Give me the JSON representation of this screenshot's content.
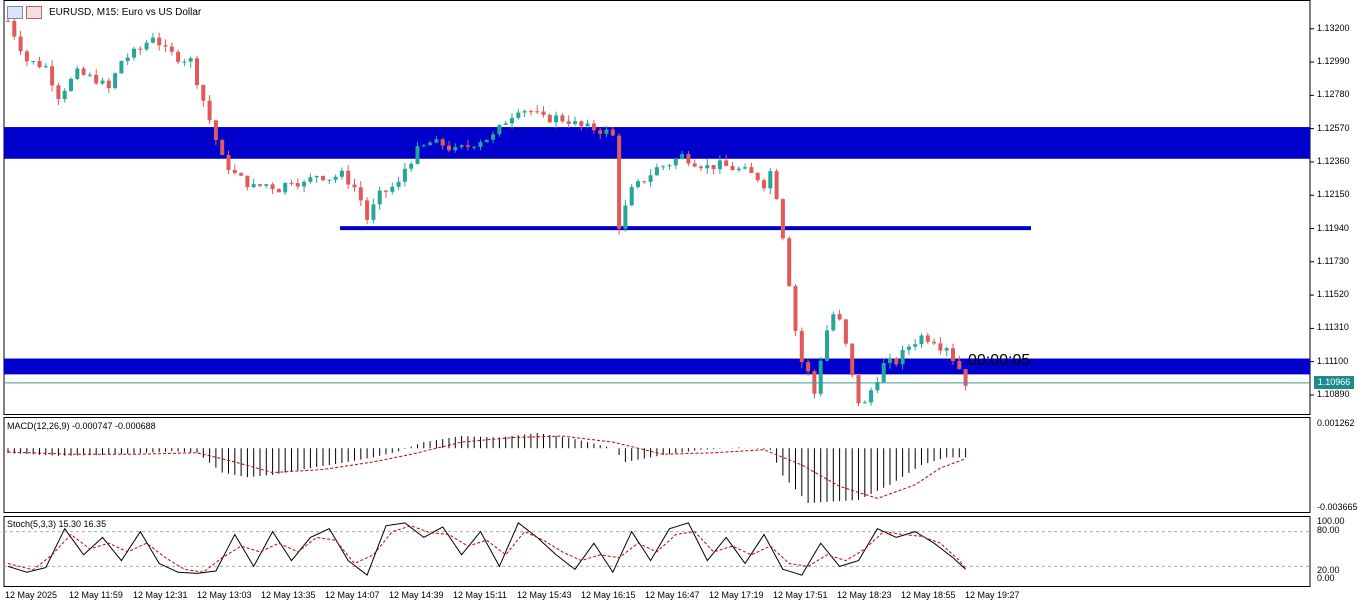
{
  "header": {
    "title": "EURUSD, M15:  Euro vs US Dollar",
    "icons": [
      "trade-menu-icon",
      "chart-type-icon"
    ]
  },
  "price_axis": {
    "ticks": [
      "1.13200",
      "1.12990",
      "1.12780",
      "1.12570",
      "1.12360",
      "1.12150",
      "1.11940",
      "1.11730",
      "1.11520",
      "1.11310",
      "1.11100",
      "1.10890"
    ],
    "range": [
      1.1077,
      1.1335
    ],
    "current_price": "1.10966",
    "countdown": "00:00:05"
  },
  "zones": [
    {
      "label": "supply-zone",
      "low": 1.1238,
      "high": 1.1258,
      "color": "#0000cc"
    },
    {
      "label": "support-line",
      "low": 1.11935,
      "high": 1.11955,
      "color": "#0000cc"
    },
    {
      "label": "demand-zone",
      "low": 1.1102,
      "high": 1.1112,
      "color": "#0000cc"
    }
  ],
  "macd": {
    "title": "MACD(12,26,9) -0.000747 -0.000688",
    "top_label": "0.001262",
    "bottom_label": "-0.003665",
    "range": [
      -0.003665,
      0.001262
    ]
  },
  "stoch": {
    "title": "Stoch(5,3,3) 15.30 16.35",
    "levels": [
      "100.00",
      "80.00",
      "20.00",
      "0.00"
    ]
  },
  "time_axis": {
    "labels": [
      "12 May 2025",
      "12 May 11:59",
      "12 May 12:31",
      "12 May 13:03",
      "12 May 13:35",
      "12 May 14:07",
      "12 May 14:39",
      "12 May 15:11",
      "12 May 15:43",
      "12 May 16:15",
      "12 May 16:47",
      "12 May 17:19",
      "12 May 17:51",
      "12 May 18:23",
      "12 May 18:55",
      "12 May 19:27"
    ]
  },
  "colors": {
    "bull": "#26a69a",
    "bear": "#e05a5a",
    "zone": "#0000cc",
    "signal": "#cc0000",
    "price_line": "#3a9a9a"
  },
  "chart_data": {
    "type": "candlestick",
    "symbol": "EURUSD",
    "timeframe": "M15",
    "path": [
      [
        0,
        1.1325
      ],
      [
        3,
        1.13
      ],
      [
        6,
        1.1296
      ],
      [
        8,
        1.1278
      ],
      [
        11,
        1.1292
      ],
      [
        14,
        1.1288
      ],
      [
        16,
        1.1282
      ],
      [
        18,
        1.13
      ],
      [
        21,
        1.1307
      ],
      [
        23,
        1.1316
      ],
      [
        25,
        1.1306
      ],
      [
        27,
        1.1302
      ],
      [
        29,
        1.13
      ],
      [
        31,
        1.1275
      ],
      [
        33,
        1.125
      ],
      [
        34,
        1.1238
      ],
      [
        36,
        1.1228
      ],
      [
        39,
        1.122
      ],
      [
        41,
        1.1222
      ],
      [
        43,
        1.1219
      ],
      [
        45,
        1.1225
      ],
      [
        47,
        1.1222
      ],
      [
        49,
        1.1228
      ],
      [
        51,
        1.1226
      ],
      [
        53,
        1.1228
      ],
      [
        55,
        1.122
      ],
      [
        56,
        1.1212
      ],
      [
        57,
        1.12
      ],
      [
        59,
        1.1215
      ],
      [
        61,
        1.122
      ],
      [
        62,
        1.1222
      ],
      [
        63,
        1.1232
      ],
      [
        65,
        1.1243
      ],
      [
        67,
        1.1248
      ],
      [
        69,
        1.1247
      ],
      [
        71,
        1.1243
      ],
      [
        73,
        1.1246
      ],
      [
        75,
        1.125
      ],
      [
        77,
        1.1252
      ],
      [
        79,
        1.1262
      ],
      [
        81,
        1.127
      ],
      [
        83,
        1.1268
      ],
      [
        85,
        1.1263
      ],
      [
        87,
        1.1264
      ],
      [
        89,
        1.1262
      ],
      [
        91,
        1.1258
      ],
      [
        93,
        1.1257
      ],
      [
        95,
        1.1255
      ],
      [
        96,
        1.1252
      ],
      [
        97,
        1.1196
      ],
      [
        99,
        1.1218
      ],
      [
        101,
        1.1225
      ],
      [
        103,
        1.1232
      ],
      [
        105,
        1.1235
      ],
      [
        107,
        1.124
      ],
      [
        109,
        1.1236
      ],
      [
        111,
        1.1233
      ],
      [
        113,
        1.1234
      ],
      [
        115,
        1.1232
      ],
      [
        117,
        1.123
      ],
      [
        119,
        1.1226
      ],
      [
        120,
        1.1222
      ],
      [
        121,
        1.123
      ],
      [
        122,
        1.1215
      ],
      [
        123,
        1.119
      ],
      [
        124,
        1.116
      ],
      [
        125,
        1.113
      ],
      [
        126,
        1.111
      ],
      [
        127,
        1.1103
      ],
      [
        128,
        1.109
      ],
      [
        129,
        1.1112
      ],
      [
        130,
        1.113
      ],
      [
        131,
        1.114
      ],
      [
        132,
        1.1135
      ],
      [
        133,
        1.112
      ],
      [
        134,
        1.11
      ],
      [
        135,
        1.1085
      ],
      [
        136,
        1.1083
      ],
      [
        137,
        1.1092
      ],
      [
        138,
        1.11
      ],
      [
        139,
        1.1108
      ],
      [
        141,
        1.111
      ],
      [
        143,
        1.112
      ],
      [
        145,
        1.1126
      ],
      [
        147,
        1.1124
      ],
      [
        148,
        1.112
      ],
      [
        149,
        1.112
      ],
      [
        150,
        1.1112
      ],
      [
        151,
        1.1106
      ],
      [
        152,
        1.1097
      ]
    ],
    "bars_total": 153,
    "macd_hist": [
      [
        0,
        -0.00032
      ],
      [
        8,
        -0.0005
      ],
      [
        14,
        -0.00045
      ],
      [
        20,
        -0.00035
      ],
      [
        26,
        -0.0002
      ],
      [
        30,
        -0.0003
      ],
      [
        34,
        -0.0016
      ],
      [
        38,
        -0.0019
      ],
      [
        42,
        -0.00175
      ],
      [
        48,
        -0.0013
      ],
      [
        54,
        -0.0009
      ],
      [
        58,
        -0.0006
      ],
      [
        62,
        -0.0002
      ],
      [
        66,
        0.0004
      ],
      [
        72,
        0.0008
      ],
      [
        78,
        0.0007
      ],
      [
        84,
        0.001
      ],
      [
        90,
        0.0006
      ],
      [
        96,
        0.0
      ],
      [
        98,
        -0.0009
      ],
      [
        104,
        -0.00045
      ],
      [
        110,
        -0.0001
      ],
      [
        116,
        5e-05
      ],
      [
        121,
        -0.0001
      ],
      [
        123,
        -0.0018
      ],
      [
        127,
        -0.0036
      ],
      [
        131,
        -0.0035
      ],
      [
        135,
        -0.0034
      ],
      [
        140,
        -0.0024
      ],
      [
        145,
        -0.0011
      ],
      [
        149,
        -0.0006
      ],
      [
        152,
        -0.0006
      ]
    ],
    "macd_signal": [
      [
        0,
        -0.00025
      ],
      [
        10,
        -0.0004
      ],
      [
        20,
        -0.0004
      ],
      [
        30,
        -0.0003
      ],
      [
        36,
        -0.0009
      ],
      [
        42,
        -0.0016
      ],
      [
        50,
        -0.0014
      ],
      [
        58,
        -0.0009
      ],
      [
        64,
        -0.0004
      ],
      [
        72,
        0.0004
      ],
      [
        80,
        0.0007
      ],
      [
        88,
        0.0008
      ],
      [
        96,
        0.0004
      ],
      [
        104,
        -0.0004
      ],
      [
        112,
        -0.0003
      ],
      [
        120,
        -0.0001
      ],
      [
        126,
        -0.0011
      ],
      [
        132,
        -0.0025
      ],
      [
        138,
        -0.0033
      ],
      [
        144,
        -0.0024
      ],
      [
        148,
        -0.0013
      ],
      [
        152,
        -0.00069
      ]
    ],
    "stoch_k": [
      [
        0,
        20
      ],
      [
        3,
        10
      ],
      [
        6,
        18
      ],
      [
        9,
        85
      ],
      [
        12,
        40
      ],
      [
        15,
        70
      ],
      [
        18,
        30
      ],
      [
        21,
        80
      ],
      [
        24,
        25
      ],
      [
        27,
        10
      ],
      [
        30,
        8
      ],
      [
        33,
        12
      ],
      [
        36,
        75
      ],
      [
        39,
        20
      ],
      [
        42,
        80
      ],
      [
        45,
        30
      ],
      [
        48,
        70
      ],
      [
        51,
        85
      ],
      [
        54,
        30
      ],
      [
        57,
        5
      ],
      [
        60,
        90
      ],
      [
        63,
        95
      ],
      [
        66,
        70
      ],
      [
        69,
        88
      ],
      [
        72,
        40
      ],
      [
        75,
        80
      ],
      [
        78,
        20
      ],
      [
        81,
        95
      ],
      [
        84,
        70
      ],
      [
        87,
        40
      ],
      [
        90,
        15
      ],
      [
        93,
        60
      ],
      [
        96,
        10
      ],
      [
        99,
        80
      ],
      [
        102,
        30
      ],
      [
        105,
        85
      ],
      [
        108,
        95
      ],
      [
        111,
        30
      ],
      [
        114,
        70
      ],
      [
        117,
        25
      ],
      [
        120,
        75
      ],
      [
        123,
        15
      ],
      [
        126,
        5
      ],
      [
        129,
        60
      ],
      [
        132,
        20
      ],
      [
        135,
        30
      ],
      [
        138,
        85
      ],
      [
        141,
        70
      ],
      [
        144,
        80
      ],
      [
        147,
        60
      ],
      [
        150,
        35
      ],
      [
        152,
        15
      ]
    ],
    "stoch_d": [
      [
        0,
        25
      ],
      [
        4,
        14
      ],
      [
        7,
        40
      ],
      [
        10,
        75
      ],
      [
        13,
        50
      ],
      [
        16,
        60
      ],
      [
        19,
        45
      ],
      [
        22,
        60
      ],
      [
        25,
        35
      ],
      [
        28,
        15
      ],
      [
        31,
        10
      ],
      [
        34,
        35
      ],
      [
        37,
        55
      ],
      [
        40,
        45
      ],
      [
        43,
        60
      ],
      [
        46,
        45
      ],
      [
        49,
        70
      ],
      [
        52,
        65
      ],
      [
        55,
        25
      ],
      [
        58,
        40
      ],
      [
        61,
        80
      ],
      [
        64,
        90
      ],
      [
        67,
        78
      ],
      [
        70,
        75
      ],
      [
        73,
        55
      ],
      [
        76,
        65
      ],
      [
        79,
        40
      ],
      [
        82,
        80
      ],
      [
        85,
        65
      ],
      [
        88,
        45
      ],
      [
        91,
        30
      ],
      [
        94,
        40
      ],
      [
        97,
        35
      ],
      [
        100,
        60
      ],
      [
        103,
        45
      ],
      [
        106,
        75
      ],
      [
        109,
        80
      ],
      [
        112,
        45
      ],
      [
        115,
        55
      ],
      [
        118,
        40
      ],
      [
        121,
        55
      ],
      [
        124,
        25
      ],
      [
        127,
        20
      ],
      [
        130,
        40
      ],
      [
        133,
        30
      ],
      [
        136,
        50
      ],
      [
        139,
        80
      ],
      [
        142,
        75
      ],
      [
        145,
        72
      ],
      [
        148,
        60
      ],
      [
        151,
        30
      ],
      [
        152,
        16
      ]
    ]
  }
}
